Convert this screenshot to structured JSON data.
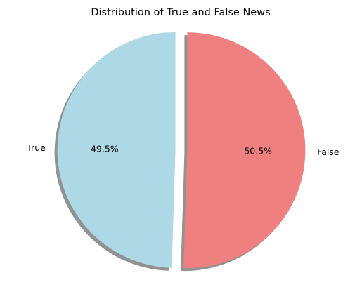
{
  "chart_data": {
    "type": "pie",
    "title": "Distribution of True and False News",
    "slices": [
      {
        "label": "True",
        "value": 49.5,
        "percent_label": "49.5%",
        "color": "#add8e6"
      },
      {
        "label": "False",
        "value": 50.5,
        "percent_label": "50.5%",
        "color": "#f08080"
      }
    ],
    "start_angle_deg": 90,
    "direction": "counterclockwise",
    "explode": [
      0.05,
      0.05
    ],
    "shadow": true,
    "shadow_color": "#7f7f7f"
  }
}
